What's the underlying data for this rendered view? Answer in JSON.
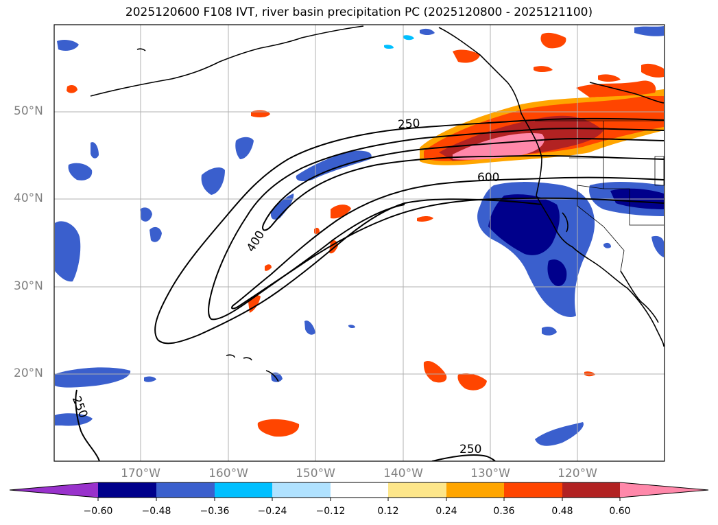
{
  "title": "2025120600 F108 IVT, river basin precipitation PC (2025120800 - 2025121100)",
  "lat_labels": [
    "50°N",
    "40°N",
    "30°N",
    "20°N"
  ],
  "lon_labels": [
    "170°W",
    "160°W",
    "150°W",
    "140°W",
    "130°W",
    "120°W"
  ],
  "contour_labels": {
    "c250_top": "250",
    "c600": "600",
    "c400": "400",
    "c250_bottom": "250",
    "c250_left": "250"
  },
  "colorbar": {
    "ticks": [
      "−0.60",
      "−0.48",
      "−0.36",
      "−0.24",
      "−0.12",
      "0.12",
      "0.24",
      "0.36",
      "0.48",
      "0.60"
    ],
    "colors": [
      "#9932cc",
      "#00008b",
      "#3a5fcd",
      "#00bfff",
      "#b0e2ff",
      "#ffffff",
      "#fde68a",
      "#ffa500",
      "#ff4500",
      "#b22222",
      "#ff88aa"
    ],
    "extend": "both"
  },
  "colors": {
    "coast": "#000000",
    "grid": "#b0b0b0",
    "tick_text": "#808080"
  }
}
